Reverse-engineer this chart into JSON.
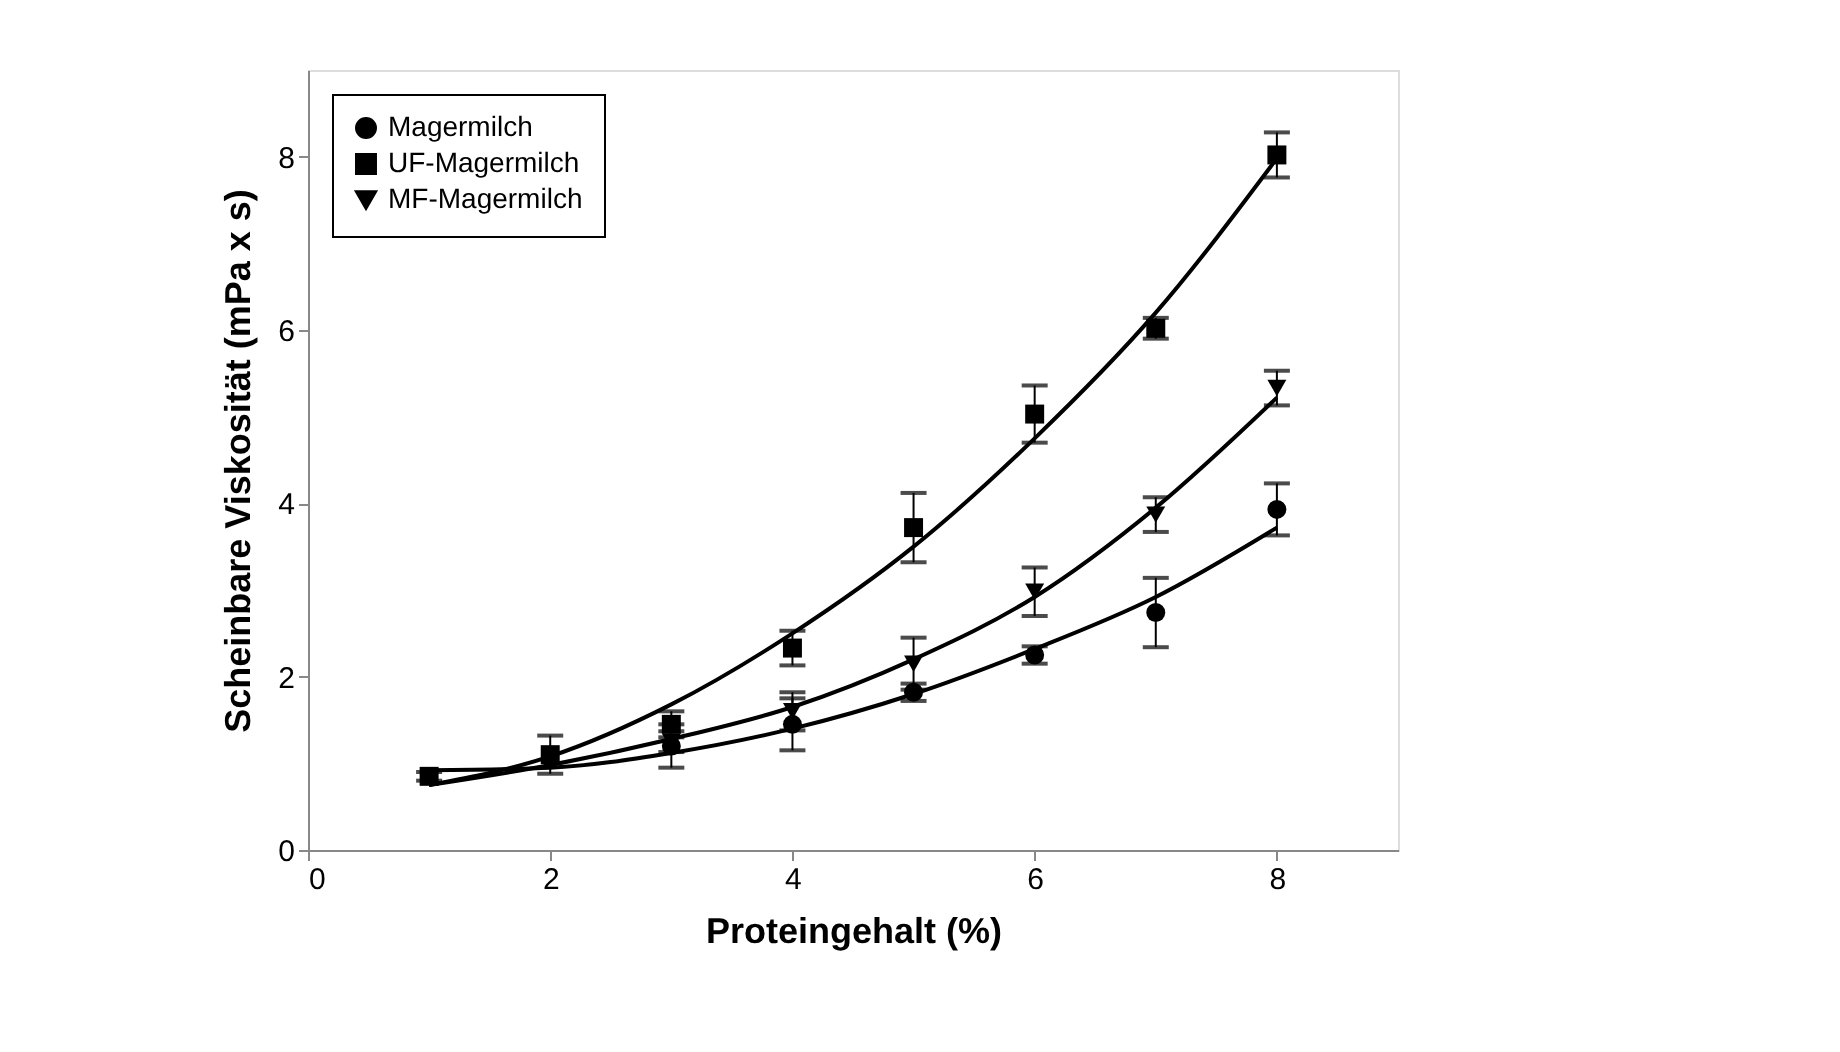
{
  "chart_data": {
    "type": "scatter",
    "xlabel": "Proteingehalt (%)",
    "ylabel": "Scheinbare Viskosität (mPa x s)",
    "x": [
      1,
      2,
      3,
      4,
      5,
      6,
      7,
      8
    ],
    "xlim": [
      0,
      9
    ],
    "ylim": [
      0,
      9
    ],
    "xticks": [
      0,
      2,
      4,
      6,
      8
    ],
    "yticks": [
      0,
      2,
      4,
      6,
      8
    ],
    "grid": false,
    "legend": "top left",
    "series": [
      {
        "name": "Magermilch",
        "color": "#000000",
        "marker": "circle",
        "values": [
          null,
          null,
          1.2,
          1.45,
          1.82,
          2.25,
          2.74,
          3.93
        ],
        "errors": [
          null,
          null,
          0.25,
          0.3,
          0.1,
          0.1,
          0.4,
          0.3
        ]
      },
      {
        "name": "UF-Magermilch",
        "color": "#000000",
        "marker": "square",
        "values": [
          0.85,
          1.1,
          1.45,
          2.33,
          3.72,
          5.03,
          6.02,
          8.02
        ],
        "errors": [
          0.05,
          0.22,
          0.15,
          0.2,
          0.4,
          0.33,
          0.12,
          0.26
        ]
      },
      {
        "name": "MF-Magermilch",
        "color": "#000000",
        "marker": "triangle",
        "values": [
          null,
          null,
          1.25,
          1.6,
          2.15,
          2.98,
          3.87,
          5.33
        ],
        "errors": [
          null,
          null,
          0.12,
          0.22,
          0.3,
          0.28,
          0.2,
          0.2
        ]
      },
      {
        "type": "line",
        "color": "#000000",
        "marker": "none",
        "x": [
          1,
          2,
          3,
          4,
          5,
          6,
          7,
          8
        ],
        "values": [
          0.92,
          0.95,
          1.12,
          1.4,
          1.8,
          2.32,
          2.92,
          3.72
        ]
      },
      {
        "type": "line",
        "color": "#000000",
        "marker": "none",
        "x": [
          1,
          2,
          3,
          4,
          5,
          6,
          7,
          8
        ],
        "values": [
          0.75,
          1.08,
          1.68,
          2.5,
          3.5,
          4.75,
          6.2,
          7.98
        ]
      },
      {
        "type": "line",
        "color": "#000000",
        "marker": "none",
        "x": [
          1,
          2,
          3,
          4,
          5,
          6,
          7,
          8
        ],
        "values": [
          0.75,
          0.98,
          1.28,
          1.65,
          2.2,
          2.92,
          3.95,
          5.22
        ]
      }
    ]
  }
}
